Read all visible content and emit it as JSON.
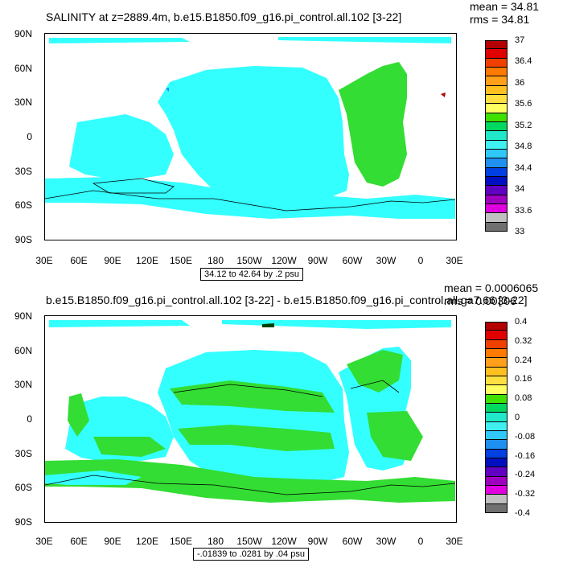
{
  "panel1": {
    "title": "SALINITY at z=2889.4m, b.e15.B1850.f09_g16.pi_control.all.102 [3-22]",
    "mean": "mean = 34.81",
    "rms": "rms = 34.81",
    "range": "34.12 to 42.64 by .2 psu",
    "colorbar_labels": [
      "37",
      "36.4",
      "36",
      "35.6",
      "35.2",
      "34.8",
      "34.4",
      "34",
      "33.6",
      "33"
    ],
    "colorbar_colors": [
      "#b40000",
      "#e00000",
      "#f04000",
      "#ff7a00",
      "#ff9f1a",
      "#ffc020",
      "#ffe040",
      "#ffff60",
      "#40e000",
      "#00d860",
      "#20e8c8",
      "#40f0f0",
      "#30c8f8",
      "#2090f0",
      "#0040e0",
      "#0010c0",
      "#6000c0",
      "#a000c0",
      "#e000e0",
      "#c0c0c0",
      "#707070"
    ]
  },
  "panel2": {
    "title": "b.e15.B1850.f09_g16.pi_control.all.102 [3-22] - b.e15.B1850.f09_g16.pi_control.all.ga7.66 [3-22]",
    "mean": "mean = 0.0006065",
    "rms": "rms = 0.00306",
    "range": "-.01839 to .0281 by .04 psu",
    "colorbar_labels": [
      "0.4",
      "0.32",
      "0.24",
      "0.16",
      "0.08",
      "0",
      "-0.08",
      "-0.16",
      "-0.24",
      "-0.32",
      "-0.4"
    ],
    "colorbar_colors": [
      "#b40000",
      "#e00000",
      "#f04000",
      "#ff7a00",
      "#ff9f1a",
      "#ffc020",
      "#ffe040",
      "#ffff60",
      "#40e000",
      "#00d860",
      "#20e8c8",
      "#40f0f0",
      "#30c8f8",
      "#2090f0",
      "#0040e0",
      "#0010c0",
      "#6000c0",
      "#a000c0",
      "#e000e0",
      "#c0c0c0",
      "#707070"
    ]
  },
  "axes": {
    "y_ticks": [
      "90N",
      "60N",
      "30N",
      "0",
      "30S",
      "60S",
      "90S"
    ],
    "x_ticks": [
      "30E",
      "60E",
      "90E",
      "120E",
      "150E",
      "180",
      "150W",
      "120W",
      "90W",
      "60W",
      "30W",
      "0",
      "30E"
    ]
  },
  "colors": {
    "cyan_fill": "#33ffff",
    "green_fill": "#33dd33",
    "land": "#ffffff"
  }
}
